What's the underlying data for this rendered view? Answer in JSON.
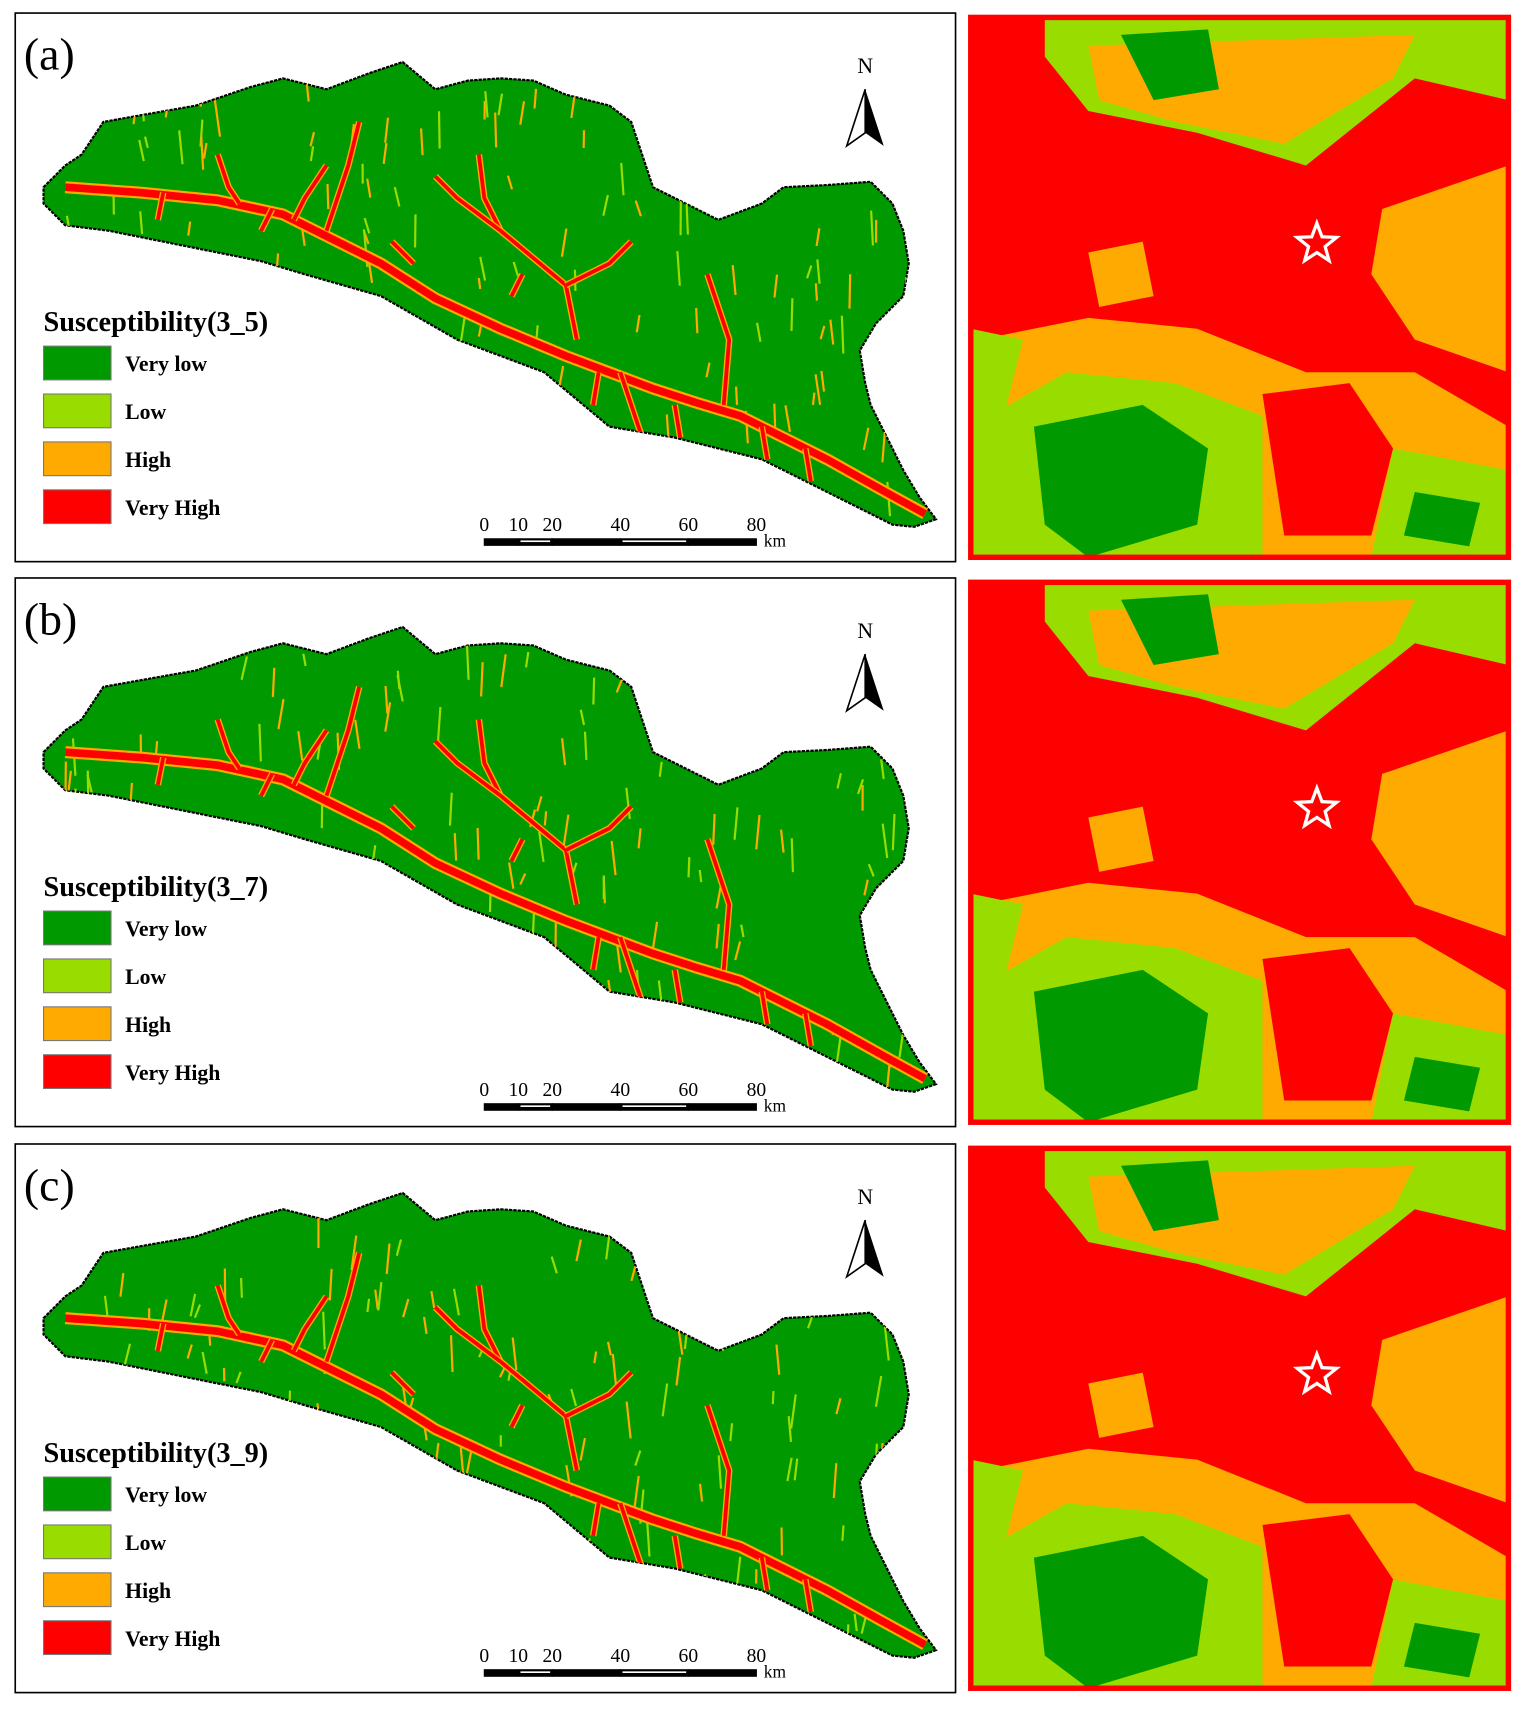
{
  "figure": {
    "panels": [
      {
        "label": "(a)",
        "legend_title": "Susceptibility(3_5)"
      },
      {
        "label": "(b)",
        "legend_title": "Susceptibility(3_7)"
      },
      {
        "label": "(c)",
        "legend_title": "Susceptibility(3_9)"
      }
    ],
    "legend_items": [
      {
        "label": "Very low",
        "color": "#009900"
      },
      {
        "label": "Low",
        "color": "#99dd00"
      },
      {
        "label": "High",
        "color": "#ffaa00"
      },
      {
        "label": "Very High",
        "color": "#ff0000"
      }
    ],
    "north_label": "N",
    "scale_ticks": [
      0,
      10,
      20,
      40,
      60,
      80
    ],
    "scale_unit": "km"
  }
}
